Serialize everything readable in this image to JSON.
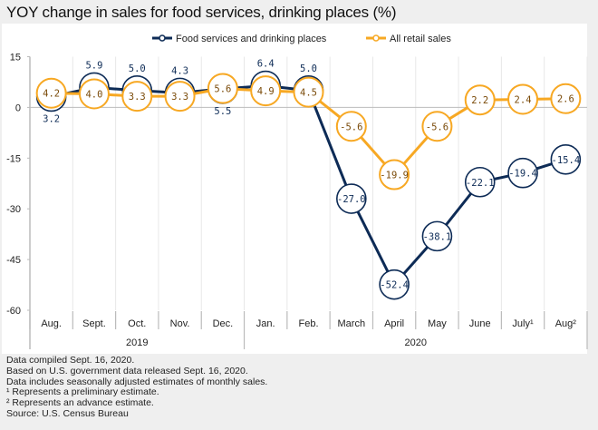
{
  "title": "YOY change in sales for food services, drinking places (%)",
  "colors": {
    "food": "#0d2b56",
    "retail": "#f7a823",
    "retail_label": "#7a4a08",
    "background": "#efefef",
    "panel": "#ffffff",
    "grid": "#e8e8e8",
    "axis": "#bbbbbb"
  },
  "notes": [
    "Data compiled Sept. 16, 2020.",
    "Based on U.S. government data released Sept. 16, 2020.",
    "Data includes seasonally adjusted estimates of monthly sales.",
    "¹ Represents a preliminary estimate.",
    "² Represents an advance estimate.",
    "Source: U.S. Census Bureau"
  ],
  "chart_data": {
    "type": "line",
    "title": "YOY change in sales for food services, drinking places (%)",
    "xlabel": "",
    "ylabel": "",
    "categories": [
      "Aug.",
      "Sept.",
      "Oct.",
      "Nov.",
      "Dec.",
      "Jan.",
      "Feb.",
      "March",
      "April",
      "May",
      "June",
      "July¹",
      "Aug²"
    ],
    "year_groups": [
      {
        "label": "2019",
        "start": 0,
        "end": 4
      },
      {
        "label": "2020",
        "start": 5,
        "end": 12
      }
    ],
    "yticks": [
      15,
      0,
      -15,
      -30,
      -45,
      -60
    ],
    "ylim": [
      -60,
      15
    ],
    "grid": "vertical",
    "legend_position": "top-center",
    "series": [
      {
        "name": "Food services and drinking places",
        "key": "food",
        "values": [
          3.2,
          5.9,
          5.0,
          4.3,
          5.5,
          6.4,
          5.0,
          -27.0,
          -52.4,
          -38.1,
          -22.1,
          -19.4,
          -15.4
        ]
      },
      {
        "name": "All retail sales",
        "key": "retail",
        "values": [
          4.2,
          4.0,
          3.3,
          3.3,
          5.6,
          4.9,
          4.5,
          -5.6,
          -19.9,
          -5.6,
          2.2,
          2.4,
          2.6
        ]
      }
    ]
  }
}
